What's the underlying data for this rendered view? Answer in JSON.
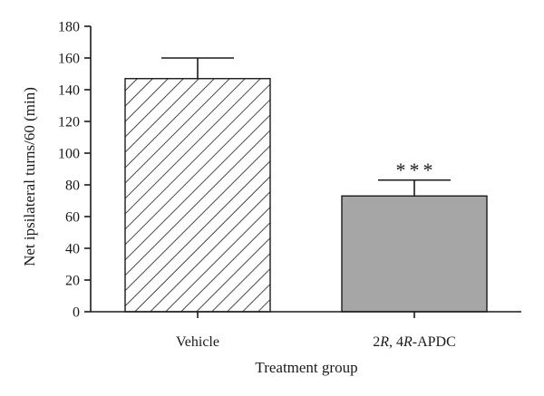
{
  "chart_data": {
    "type": "bar",
    "title": "",
    "xlabel": "Treatment group",
    "ylabel": "Net ipsilateral turns/60 (min)",
    "ylim": [
      0,
      180
    ],
    "yticks": [
      0,
      20,
      40,
      60,
      80,
      100,
      120,
      140,
      160,
      180
    ],
    "categories": [
      {
        "label": "Vehicle",
        "label_parts": [
          {
            "text": "Vehicle",
            "italic": false
          }
        ]
      },
      {
        "label": "2R, 4R-APDC",
        "label_parts": [
          {
            "text": "2",
            "italic": false
          },
          {
            "text": "R",
            "italic": true
          },
          {
            "text": ", 4",
            "italic": false
          },
          {
            "text": "R",
            "italic": true
          },
          {
            "text": "-APDC",
            "italic": false
          }
        ]
      }
    ],
    "values": [
      147,
      73
    ],
    "error_upper": [
      160,
      83
    ],
    "fill": [
      "hatched",
      "solid"
    ],
    "colors": {
      "bar2": "#a6a6a6",
      "axis": "#1a1a1a",
      "hatch": "#1a1a1a"
    },
    "annotations": [
      {
        "category_index": 1,
        "text": "***"
      }
    ],
    "grid": false,
    "legend": "none"
  }
}
